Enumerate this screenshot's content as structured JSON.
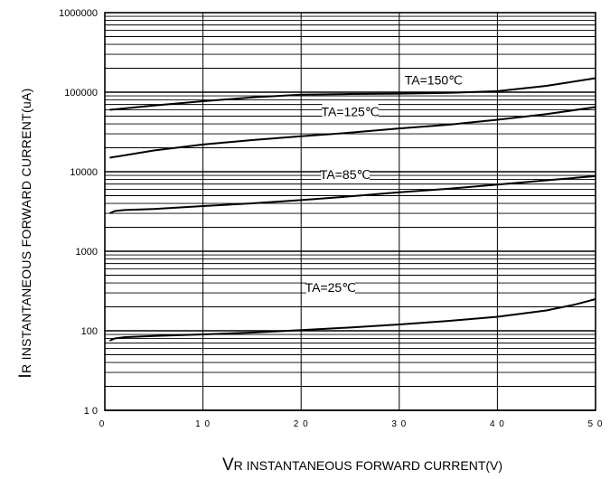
{
  "chart_data": {
    "type": "line",
    "title": "",
    "xlabel_prefix": "V",
    "xlabel": "R INSTANTANEOUS FORWARD CURRENT(V)",
    "ylabel_prefix": "I",
    "ylabel": "R INSTANTANEOUS FORWARD CURRENT(uA)",
    "x_scale": "linear",
    "y_scale": "log",
    "xlim": [
      0,
      50
    ],
    "ylim": [
      10,
      1000000
    ],
    "x_ticks": [
      0,
      10,
      20,
      30,
      40,
      50
    ],
    "x_tick_labels": [
      "0",
      "1 0",
      "2 0",
      "3 0",
      "4 0",
      "5 0"
    ],
    "y_ticks": [
      10,
      100,
      1000,
      10000,
      100000,
      1000000
    ],
    "y_tick_labels": [
      "1 0",
      "100",
      "1000",
      "10000",
      "100000",
      "1000000"
    ],
    "grid": true,
    "legend": "none",
    "series": [
      {
        "name": "TA=150℃",
        "x": [
          0.5,
          5,
          10,
          15,
          20,
          25,
          30,
          35,
          40,
          45,
          50
        ],
        "y": [
          60000,
          68000,
          77000,
          86000,
          93000,
          95000,
          96000,
          98000,
          103000,
          120000,
          150000
        ]
      },
      {
        "name": "TA=125℃",
        "x": [
          0.5,
          5,
          10,
          15,
          20,
          25,
          30,
          35,
          40,
          45,
          50
        ],
        "y": [
          15000,
          18500,
          22000,
          25000,
          28000,
          31000,
          35000,
          39000,
          45000,
          53000,
          65000
        ]
      },
      {
        "name": "TA=85℃",
        "x": [
          0.5,
          1,
          2,
          5,
          10,
          15,
          20,
          25,
          30,
          35,
          40,
          45,
          50
        ],
        "y": [
          3000,
          3200,
          3300,
          3400,
          3700,
          4000,
          4400,
          4900,
          5500,
          6100,
          6900,
          7800,
          8800
        ]
      },
      {
        "name": "TA=25℃",
        "x": [
          0.5,
          1,
          2,
          5,
          10,
          15,
          20,
          25,
          30,
          35,
          40,
          45,
          48,
          50
        ],
        "y": [
          75,
          80,
          83,
          86,
          90,
          95,
          102,
          110,
          120,
          133,
          150,
          180,
          215,
          250
        ]
      }
    ]
  }
}
